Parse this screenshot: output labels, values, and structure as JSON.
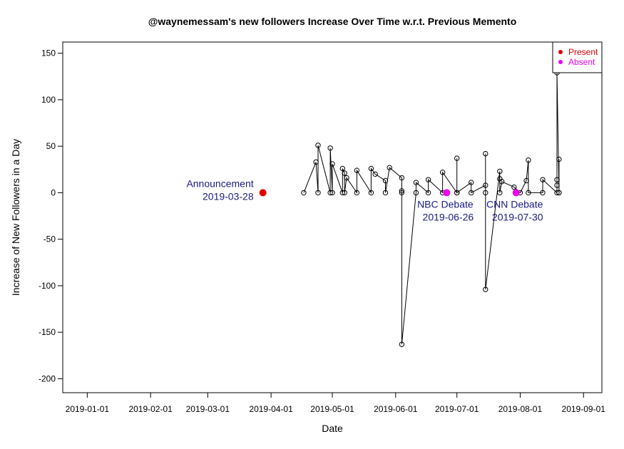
{
  "chart_data": {
    "type": "scatter",
    "title": "@waynemessam's new followers Increase Over Time w.r.t. Previous Memento",
    "xlabel": "Date",
    "ylabel": "Increase of New Followers in a Day",
    "xlim": [
      "2018-12-20",
      "2019-09-10"
    ],
    "ylim": [
      -215,
      162
    ],
    "x_ticks": [
      "2019-01-01",
      "2019-02-01",
      "2019-03-01",
      "2019-04-01",
      "2019-05-01",
      "2019-06-01",
      "2019-07-01",
      "2019-08-01",
      "2019-09-01"
    ],
    "y_ticks": [
      150,
      100,
      50,
      0,
      -50,
      -100,
      -150,
      -200
    ],
    "legend": {
      "position": "top-right",
      "entries": [
        {
          "label": "Present",
          "color": "#e00000"
        },
        {
          "label": "Absent",
          "color": "#ee00ee"
        }
      ]
    },
    "events": [
      {
        "label": "Announcement",
        "date": "2019-03-28",
        "status": "Present",
        "label_side": "left"
      },
      {
        "label": "NBC Debate",
        "date": "2019-06-26",
        "status": "Absent",
        "label_side": "below"
      },
      {
        "label": "CNN Debate",
        "date": "2019-07-30",
        "status": "Absent",
        "label_side": "below"
      }
    ],
    "series": [
      {
        "type": "line",
        "marker": "open-circle",
        "points": [
          {
            "x": "2019-04-17",
            "y": 0
          },
          {
            "x": "2019-04-23",
            "y": 33
          },
          {
            "x": "2019-04-24",
            "y": 0
          },
          {
            "x": "2019-04-24",
            "y": 51
          },
          {
            "x": "2019-04-30",
            "y": 0
          },
          {
            "x": "2019-04-30",
            "y": 48
          },
          {
            "x": "2019-05-01",
            "y": 0
          },
          {
            "x": "2019-05-01",
            "y": 31
          },
          {
            "x": "2019-05-06",
            "y": 0
          },
          {
            "x": "2019-05-06",
            "y": 26
          },
          {
            "x": "2019-05-07",
            "y": 21
          },
          {
            "x": "2019-05-07",
            "y": 0
          },
          {
            "x": "2019-05-08",
            "y": 16
          },
          {
            "x": "2019-05-13",
            "y": 0
          },
          {
            "x": "2019-05-13",
            "y": 24
          },
          {
            "x": "2019-05-20",
            "y": 0
          },
          {
            "x": "2019-05-20",
            "y": 26
          },
          {
            "x": "2019-05-22",
            "y": 20
          },
          {
            "x": "2019-05-27",
            "y": 13
          },
          {
            "x": "2019-05-27",
            "y": 0
          },
          {
            "x": "2019-05-29",
            "y": 27
          },
          {
            "x": "2019-06-04",
            "y": 16
          },
          {
            "x": "2019-06-04",
            "y": 2
          },
          {
            "x": "2019-06-04",
            "y": 0
          },
          {
            "x": "2019-06-04",
            "y": -163
          },
          {
            "x": "2019-06-11",
            "y": 0
          },
          {
            "x": "2019-06-11",
            "y": 11
          },
          {
            "x": "2019-06-17",
            "y": 0
          },
          {
            "x": "2019-06-17",
            "y": 14
          },
          {
            "x": "2019-06-24",
            "y": 0
          },
          {
            "x": "2019-06-24",
            "y": 22
          },
          {
            "x": "2019-07-01",
            "y": 0
          },
          {
            "x": "2019-07-01",
            "y": 37
          },
          {
            "x": "2019-07-01",
            "y": 0
          },
          {
            "x": "2019-07-08",
            "y": 11
          },
          {
            "x": "2019-07-08",
            "y": 0
          },
          {
            "x": "2019-07-15",
            "y": 8
          },
          {
            "x": "2019-07-15",
            "y": 0
          },
          {
            "x": "2019-07-15",
            "y": 42
          },
          {
            "x": "2019-07-15",
            "y": -104
          },
          {
            "x": "2019-07-22",
            "y": 23
          },
          {
            "x": "2019-07-22",
            "y": 15
          },
          {
            "x": "2019-07-22",
            "y": 0
          },
          {
            "x": "2019-07-23",
            "y": 12
          },
          {
            "x": "2019-07-29",
            "y": 6
          },
          {
            "x": "2019-08-01",
            "y": 0
          },
          {
            "x": "2019-08-04",
            "y": 13
          },
          {
            "x": "2019-08-05",
            "y": 35
          },
          {
            "x": "2019-08-05",
            "y": 0
          },
          {
            "x": "2019-08-12",
            "y": 0
          },
          {
            "x": "2019-08-12",
            "y": 14
          },
          {
            "x": "2019-08-19",
            "y": 0
          },
          {
            "x": "2019-08-19",
            "y": 8
          },
          {
            "x": "2019-08-19",
            "y": 14
          },
          {
            "x": "2019-08-19",
            "y": 129
          },
          {
            "x": "2019-08-20",
            "y": 0
          },
          {
            "x": "2019-08-20",
            "y": 36
          },
          {
            "x": "2019-08-20",
            "y": 0
          }
        ]
      }
    ]
  }
}
